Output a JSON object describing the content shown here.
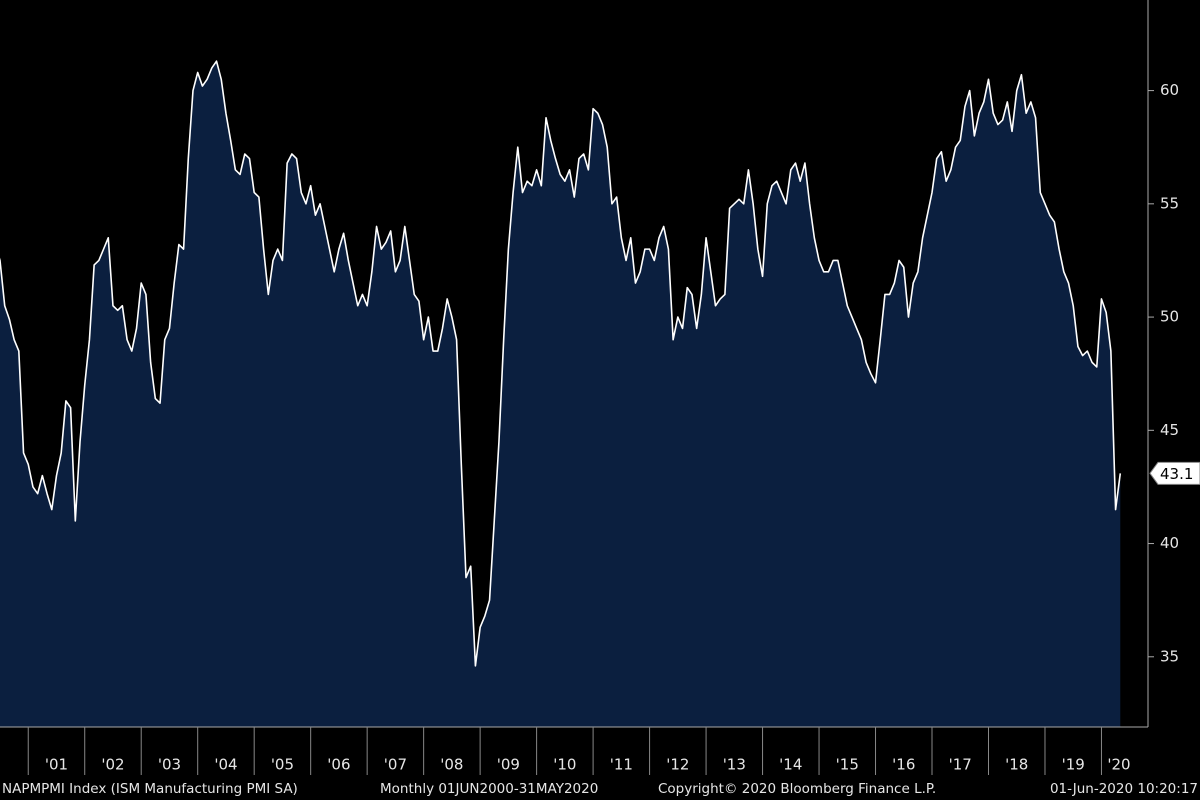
{
  "chart_data": {
    "type": "area",
    "series": [
      {
        "name": "NAPMPMI Index",
        "color": "#ffffff",
        "fill": "#0b1f3f",
        "values": [
          53.2,
          52.5,
          50.5,
          49.9,
          49.0,
          48.5,
          44.0,
          43.5,
          42.5,
          42.2,
          43.0,
          42.2,
          41.5,
          43.0,
          44.0,
          46.3,
          46.0,
          41.0,
          44.5,
          47.0,
          49.0,
          52.3,
          52.5,
          53.0,
          53.5,
          50.5,
          50.3,
          50.5,
          49.0,
          48.5,
          49.5,
          51.5,
          51.0,
          48.0,
          46.4,
          46.2,
          49.0,
          49.5,
          51.5,
          53.2,
          53.0,
          57.0,
          60.0,
          60.8,
          60.2,
          60.5,
          61.0,
          61.3,
          60.5,
          59.0,
          57.8,
          56.5,
          56.3,
          57.2,
          57.0,
          55.5,
          55.3,
          53.0,
          51.0,
          52.5,
          53.0,
          52.5,
          56.8,
          57.2,
          57.0,
          55.5,
          55.0,
          55.8,
          54.5,
          55.0,
          54.0,
          53.0,
          52.0,
          53.0,
          53.7,
          52.5,
          51.5,
          50.5,
          51.0,
          50.5,
          52.0,
          54.0,
          53.0,
          53.3,
          53.8,
          52.0,
          52.5,
          54.0,
          52.5,
          51.0,
          50.7,
          49.0,
          50.0,
          48.5,
          48.5,
          49.5,
          50.8,
          50.0,
          49.0,
          43.5,
          38.5,
          39.0,
          34.6,
          36.3,
          36.8,
          37.5,
          41.0,
          44.5,
          49.0,
          53.0,
          55.5,
          57.5,
          55.5,
          56.0,
          55.8,
          56.5,
          55.8,
          58.8,
          57.8,
          57.0,
          56.3,
          56.0,
          56.5,
          55.3,
          57.0,
          57.2,
          56.5,
          59.2,
          59.0,
          58.5,
          57.5,
          55.0,
          55.3,
          53.5,
          52.5,
          53.5,
          51.5,
          52.0,
          53.0,
          53.0,
          52.5,
          53.5,
          54.0,
          53.0,
          49.0,
          50.0,
          49.5,
          51.3,
          51.0,
          49.5,
          51.0,
          53.5,
          52.0,
          50.5,
          50.8,
          51.0,
          54.8,
          55.0,
          55.2,
          55.0,
          56.5,
          55.0,
          53.0,
          51.8,
          55.0,
          55.8,
          56.0,
          55.5,
          55.0,
          56.5,
          56.8,
          56.0,
          56.8,
          55.0,
          53.5,
          52.5,
          52.0,
          52.0,
          52.5,
          52.5,
          51.5,
          50.5,
          50.0,
          49.5,
          49.0,
          48.0,
          47.5,
          47.1,
          49.0,
          51.0,
          51.0,
          51.5,
          52.5,
          52.2,
          50.0,
          51.5,
          52.0,
          53.5,
          54.5,
          55.5,
          57.0,
          57.3,
          56.0,
          56.5,
          57.5,
          57.8,
          59.3,
          60.0,
          58.0,
          59.0,
          59.5,
          60.5,
          59.0,
          58.5,
          58.7,
          59.5,
          58.2,
          60.0,
          60.7,
          59.0,
          59.5,
          58.8,
          55.5,
          55.0,
          54.5,
          54.2,
          53.0,
          52.0,
          51.5,
          50.5,
          48.7,
          48.3,
          48.5,
          48.0,
          47.8,
          50.8,
          50.2,
          48.5,
          41.5,
          43.1
        ]
      }
    ],
    "ylim": [
      31.9,
      64.0
    ],
    "yticks": [
      35,
      40,
      45,
      50,
      55,
      60
    ],
    "xlim": [
      1,
      240
    ],
    "xticks": [
      {
        "value": 7,
        "label": "'01"
      },
      {
        "value": 19,
        "label": "'02"
      },
      {
        "value": 31,
        "label": "'03"
      },
      {
        "value": 43,
        "label": "'04"
      },
      {
        "value": 55,
        "label": "'05"
      },
      {
        "value": 67,
        "label": "'06"
      },
      {
        "value": 79,
        "label": "'07"
      },
      {
        "value": 91,
        "label": "'08"
      },
      {
        "value": 103,
        "label": "'09"
      },
      {
        "value": 115,
        "label": "'10"
      },
      {
        "value": 127,
        "label": "'11"
      },
      {
        "value": 139,
        "label": "'12"
      },
      {
        "value": 151,
        "label": "'13"
      },
      {
        "value": 163,
        "label": "'14"
      },
      {
        "value": 175,
        "label": "'15"
      },
      {
        "value": 187,
        "label": "'16"
      },
      {
        "value": 199,
        "label": "'17"
      },
      {
        "value": 211,
        "label": "'18"
      },
      {
        "value": 223,
        "label": "'19"
      },
      {
        "value": 235,
        "label": "'20"
      }
    ],
    "grid": false,
    "footer": [
      "NAPMPMI Index (ISM Manufacturing PMI SA)",
      "Monthly 01JUN2000-31MAY2020",
      "Copyright© 2020 Bloomberg Finance L.P.",
      "01-Jun-2020 10:20:17"
    ]
  }
}
